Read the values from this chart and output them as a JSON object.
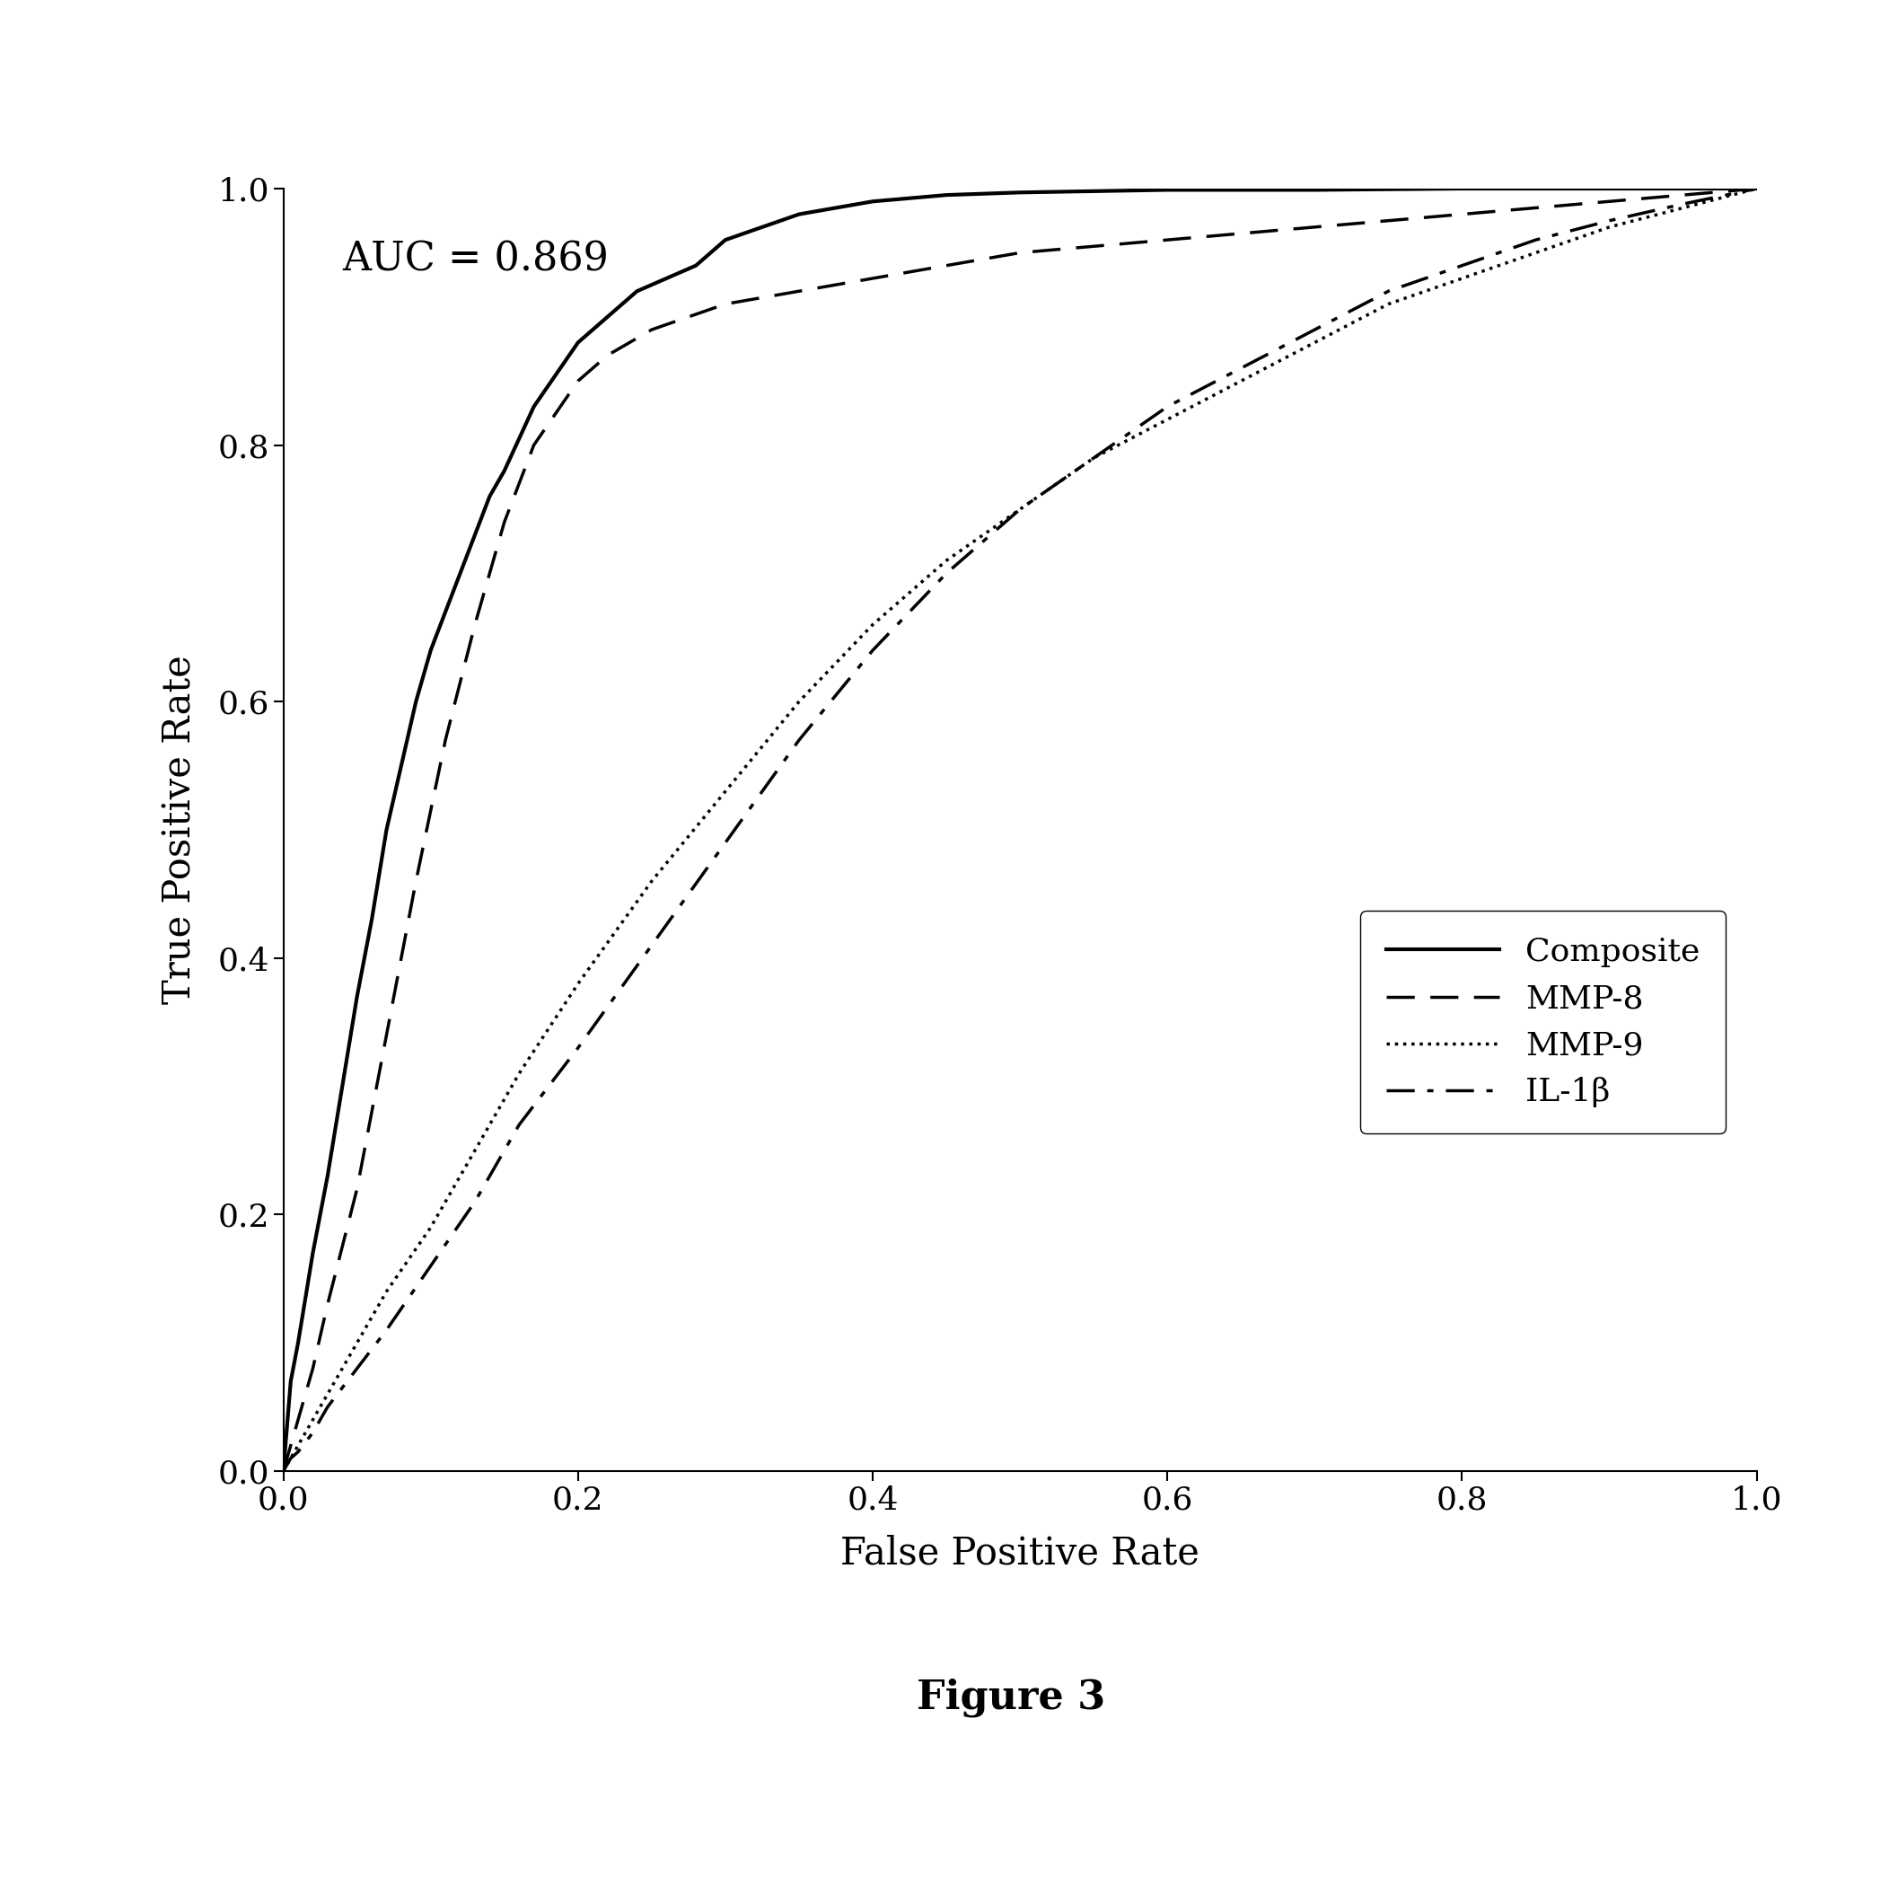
{
  "title": "",
  "xlabel": "False Positive Rate",
  "ylabel": "True Positive Rate",
  "auc_text": "AUC = 0.869",
  "figure3_label": "Figure 3",
  "xlim": [
    0.0,
    1.0
  ],
  "ylim": [
    0.0,
    1.0
  ],
  "xticks": [
    0.0,
    0.2,
    0.4,
    0.6,
    0.8,
    1.0
  ],
  "yticks": [
    0.0,
    0.2,
    0.4,
    0.6,
    0.8,
    1.0
  ],
  "background_color": "#ffffff",
  "line_color": "#000000",
  "composite": {
    "fpr": [
      0.0,
      0.005,
      0.01,
      0.02,
      0.03,
      0.04,
      0.05,
      0.06,
      0.07,
      0.08,
      0.09,
      0.1,
      0.11,
      0.12,
      0.13,
      0.14,
      0.15,
      0.17,
      0.2,
      0.22,
      0.24,
      0.26,
      0.28,
      0.3,
      0.35,
      0.4,
      0.45,
      0.5,
      0.55,
      0.6,
      0.7,
      0.8,
      0.9,
      1.0
    ],
    "tpr": [
      0.0,
      0.07,
      0.1,
      0.17,
      0.23,
      0.3,
      0.37,
      0.43,
      0.5,
      0.55,
      0.6,
      0.64,
      0.67,
      0.7,
      0.73,
      0.76,
      0.78,
      0.83,
      0.88,
      0.9,
      0.92,
      0.93,
      0.94,
      0.96,
      0.98,
      0.99,
      0.995,
      0.997,
      0.998,
      0.999,
      0.999,
      1.0,
      1.0,
      1.0
    ],
    "linestyle": "solid",
    "linewidth": 3.0,
    "label": "Composite"
  },
  "mmp8": {
    "fpr": [
      0.0,
      0.005,
      0.01,
      0.02,
      0.03,
      0.05,
      0.07,
      0.09,
      0.11,
      0.13,
      0.15,
      0.17,
      0.2,
      0.22,
      0.25,
      0.3,
      0.35,
      0.4,
      0.5,
      0.6,
      0.7,
      0.8,
      0.9,
      1.0
    ],
    "tpr": [
      0.0,
      0.02,
      0.04,
      0.08,
      0.13,
      0.22,
      0.34,
      0.46,
      0.57,
      0.66,
      0.74,
      0.8,
      0.85,
      0.87,
      0.89,
      0.91,
      0.92,
      0.93,
      0.95,
      0.96,
      0.97,
      0.98,
      0.99,
      1.0
    ],
    "linestyle": "dashed",
    "linewidth": 2.5,
    "label": "MMP-8"
  },
  "mmp9": {
    "fpr": [
      0.0,
      0.005,
      0.01,
      0.02,
      0.03,
      0.05,
      0.07,
      0.1,
      0.13,
      0.16,
      0.2,
      0.25,
      0.3,
      0.35,
      0.4,
      0.45,
      0.5,
      0.55,
      0.6,
      0.65,
      0.7,
      0.75,
      0.8,
      0.85,
      0.9,
      0.95,
      1.0
    ],
    "tpr": [
      0.0,
      0.01,
      0.02,
      0.04,
      0.06,
      0.1,
      0.14,
      0.19,
      0.25,
      0.31,
      0.38,
      0.46,
      0.53,
      0.6,
      0.66,
      0.71,
      0.75,
      0.79,
      0.82,
      0.85,
      0.88,
      0.91,
      0.93,
      0.95,
      0.97,
      0.985,
      1.0
    ],
    "linestyle": "dotted",
    "linewidth": 2.5,
    "label": "MMP-9"
  },
  "il1b": {
    "fpr": [
      0.0,
      0.005,
      0.01,
      0.02,
      0.03,
      0.05,
      0.07,
      0.1,
      0.13,
      0.16,
      0.2,
      0.25,
      0.3,
      0.35,
      0.4,
      0.45,
      0.5,
      0.55,
      0.6,
      0.65,
      0.7,
      0.75,
      0.8,
      0.85,
      0.9,
      0.95,
      1.0
    ],
    "tpr": [
      0.0,
      0.01,
      0.015,
      0.03,
      0.05,
      0.08,
      0.11,
      0.16,
      0.21,
      0.27,
      0.33,
      0.41,
      0.49,
      0.57,
      0.64,
      0.7,
      0.75,
      0.79,
      0.83,
      0.86,
      0.89,
      0.92,
      0.94,
      0.96,
      0.975,
      0.988,
      1.0
    ],
    "linestyle": "dashdot",
    "linewidth": 2.5,
    "label": "IL-1β"
  },
  "auc_fontsize": 32,
  "axis_label_fontsize": 30,
  "tick_fontsize": 26,
  "legend_fontsize": 26,
  "figure3_fontsize": 32
}
